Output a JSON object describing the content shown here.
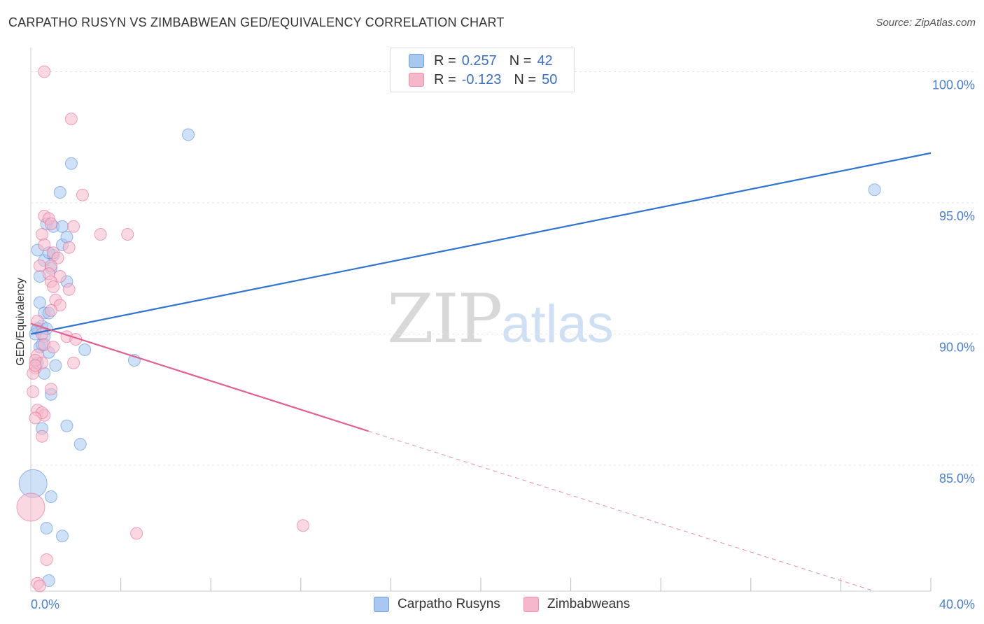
{
  "title": "CARPATHO RUSYN VS ZIMBABWEAN GED/EQUIVALENCY CORRELATION CHART",
  "source": "Source: ZipAtlas.com",
  "watermark": {
    "zip": "ZIP",
    "atlas": "atlas"
  },
  "legend": {
    "rows": [
      {
        "r_label": "R =",
        "r_value": "0.257",
        "n_label": "N =",
        "n_value": "42",
        "color": "#a8c8f0"
      },
      {
        "r_label": "R =",
        "r_value": "-0.123",
        "n_label": "N =",
        "n_value": "50",
        "color": "#f5b8cb"
      }
    ]
  },
  "bottom_legend": [
    {
      "label": "Carpatho Rusyns",
      "color": "#a8c8f0"
    },
    {
      "label": "Zimbabweans",
      "color": "#f5b8cb"
    }
  ],
  "chart_data": {
    "type": "scatter",
    "title": "CARPATHO RUSYN VS ZIMBABWEAN GED/EQUIVALENCY CORRELATION CHART",
    "xlabel": "",
    "ylabel": "GED/Equivalency",
    "xlim": [
      0,
      40
    ],
    "ylim": [
      80.2,
      100.6
    ],
    "x_tick_labels": [
      "0.0%",
      "40.0%"
    ],
    "y_ticks": [
      100,
      95,
      90,
      85
    ],
    "y_tick_labels": [
      "100.0%",
      "95.0%",
      "90.0%",
      "85.0%"
    ],
    "grid": true,
    "series": [
      {
        "name": "Carpatho Rusyns",
        "color": "#4a86d8",
        "fill": "#a8c8f0",
        "r": 0.257,
        "n": 42,
        "trend": {
          "x0": 0,
          "y0": 90.0,
          "x1": 40,
          "y1": 96.9
        },
        "points": [
          [
            0.1,
            84.3
          ],
          [
            0.3,
            90.2
          ],
          [
            0.2,
            90.0
          ],
          [
            0.5,
            90.3
          ],
          [
            0.6,
            89.9
          ],
          [
            0.4,
            89.5
          ],
          [
            0.8,
            89.3
          ],
          [
            0.3,
            88.9
          ],
          [
            1.1,
            88.8
          ],
          [
            0.6,
            88.5
          ],
          [
            0.9,
            87.7
          ],
          [
            0.5,
            86.4
          ],
          [
            1.6,
            86.5
          ],
          [
            2.2,
            85.8
          ],
          [
            0.9,
            83.8
          ],
          [
            0.7,
            82.6
          ],
          [
            1.4,
            82.3
          ],
          [
            0.8,
            80.6
          ],
          [
            0.3,
            93.2
          ],
          [
            0.4,
            92.2
          ],
          [
            0.6,
            92.8
          ],
          [
            0.9,
            92.5
          ],
          [
            1.0,
            93.0
          ],
          [
            0.8,
            93.1
          ],
          [
            1.4,
            93.4
          ],
          [
            1.6,
            93.7
          ],
          [
            0.7,
            94.2
          ],
          [
            1.0,
            94.1
          ],
          [
            1.4,
            94.1
          ],
          [
            1.3,
            95.4
          ],
          [
            1.8,
            96.5
          ],
          [
            7.0,
            97.6
          ],
          [
            0.4,
            91.2
          ],
          [
            0.6,
            90.8
          ],
          [
            0.8,
            90.8
          ],
          [
            1.6,
            92.0
          ],
          [
            2.4,
            89.4
          ],
          [
            4.6,
            89.0
          ],
          [
            0.3,
            90.2
          ],
          [
            0.7,
            90.2
          ],
          [
            37.5,
            95.5
          ],
          [
            0.5,
            89.6
          ]
        ]
      },
      {
        "name": "Zimbabweans",
        "color": "#e26090",
        "fill": "#f5b8cb",
        "r": -0.123,
        "n": 50,
        "trend_solid": {
          "x0": 0,
          "y0": 90.4,
          "x1": 15.0,
          "y1": 86.3
        },
        "trend_dashed": {
          "x0": 15.0,
          "y0": 86.3,
          "x1": 37.5,
          "y1": 80.2
        },
        "points": [
          [
            0.6,
            100.0
          ],
          [
            1.8,
            98.2
          ],
          [
            2.3,
            95.3
          ],
          [
            0.6,
            94.5
          ],
          [
            0.8,
            94.4
          ],
          [
            0.9,
            94.2
          ],
          [
            1.9,
            94.1
          ],
          [
            3.1,
            93.8
          ],
          [
            4.3,
            93.8
          ],
          [
            0.5,
            93.8
          ],
          [
            0.6,
            93.4
          ],
          [
            1.7,
            93.3
          ],
          [
            1.0,
            93.1
          ],
          [
            1.2,
            92.9
          ],
          [
            0.4,
            92.6
          ],
          [
            0.9,
            92.6
          ],
          [
            0.8,
            92.3
          ],
          [
            1.3,
            92.2
          ],
          [
            0.9,
            92.0
          ],
          [
            1.0,
            91.8
          ],
          [
            1.7,
            91.7
          ],
          [
            1.1,
            91.3
          ],
          [
            1.3,
            91.1
          ],
          [
            0.9,
            90.9
          ],
          [
            0.3,
            90.5
          ],
          [
            0.5,
            90.0
          ],
          [
            1.6,
            89.9
          ],
          [
            2.0,
            89.8
          ],
          [
            0.6,
            89.6
          ],
          [
            1.0,
            89.5
          ],
          [
            0.3,
            89.2
          ],
          [
            0.2,
            88.7
          ],
          [
            0.5,
            88.9
          ],
          [
            0.2,
            89.0
          ],
          [
            1.9,
            88.9
          ],
          [
            0.1,
            88.5
          ],
          [
            0.1,
            87.8
          ],
          [
            0.9,
            87.9
          ],
          [
            0.3,
            87.1
          ],
          [
            0.6,
            86.9
          ],
          [
            0.5,
            87.0
          ],
          [
            0.2,
            86.8
          ],
          [
            0.5,
            86.1
          ],
          [
            0.0,
            83.4
          ],
          [
            4.7,
            82.4
          ],
          [
            12.1,
            82.7
          ],
          [
            0.7,
            81.4
          ],
          [
            0.3,
            80.5
          ],
          [
            0.4,
            80.4
          ],
          [
            0.2,
            88.8
          ]
        ]
      }
    ]
  }
}
